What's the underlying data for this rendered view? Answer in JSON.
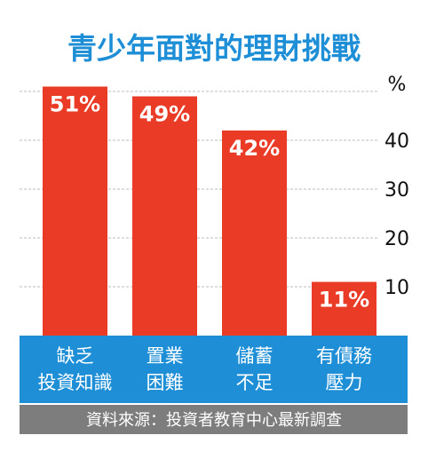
{
  "chart_data": {
    "type": "bar",
    "title": "青少年面對的理財挑戰",
    "categories": [
      [
        "缺乏",
        "投資知識"
      ],
      [
        "置業",
        "困難"
      ],
      [
        "儲蓄",
        "不足"
      ],
      [
        "有債務",
        "壓力"
      ]
    ],
    "values": [
      51,
      49,
      42,
      11
    ],
    "data_labels": [
      "51%",
      "49%",
      "42%",
      "11%"
    ],
    "y_unit": "%",
    "y_ticks": [
      "10",
      "20",
      "30",
      "40"
    ],
    "ylim": [
      0,
      50
    ],
    "grid": true,
    "bar_color": "#ea3b26",
    "source": "資料來源：投資者教育中心最新調查"
  },
  "colors": {
    "title": "#1e8fd6",
    "category_band": "#1e8fd6",
    "source_band": "#7d7d7d"
  }
}
